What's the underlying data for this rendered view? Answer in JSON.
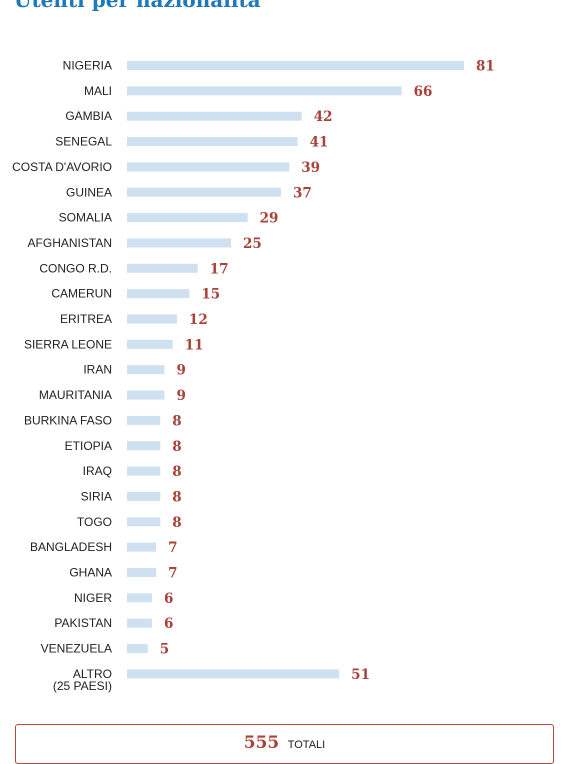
{
  "title": "Utenti per nazionalità",
  "colors": {
    "bar": "#cfe0f0",
    "value_label": "#a8423a",
    "title": "#1f78b8",
    "total_border": "#b5493f"
  },
  "total": {
    "value": "555",
    "label": "TOTALI"
  },
  "chart_data": {
    "type": "bar",
    "orientation": "horizontal",
    "title": "Utenti per nazionalità",
    "xlabel": "",
    "ylabel": "",
    "xlim": [
      0,
      81
    ],
    "grid": false,
    "legend": "none",
    "categories": [
      "NIGERIA",
      "MALI",
      "GAMBIA",
      "SENEGAL",
      "COSTA D'AVORIO",
      "GUINEA",
      "SOMALIA",
      "AFGHANISTAN",
      "CONGO R.D.",
      "CAMERUN",
      "ERITREA",
      "SIERRA LEONE",
      "IRAN",
      "MAURITANIA",
      "BURKINA FASO",
      "ETIOPIA",
      "IRAQ",
      "SIRIA",
      "TOGO",
      "BANGLADESH",
      "GHANA",
      "NIGER",
      "PAKISTAN",
      "VENEZUELA",
      "ALTRO\n(25 PAESI)"
    ],
    "values": [
      81,
      66,
      42,
      41,
      39,
      37,
      29,
      25,
      17,
      15,
      12,
      11,
      9,
      9,
      8,
      8,
      8,
      8,
      8,
      7,
      7,
      6,
      6,
      5,
      51
    ]
  }
}
